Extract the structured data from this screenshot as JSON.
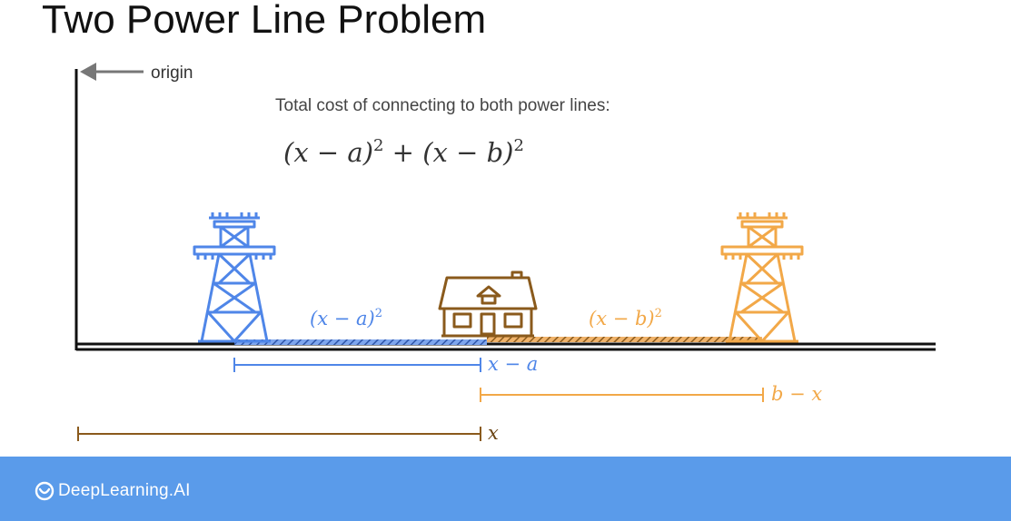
{
  "title": "Two Power Line Problem",
  "origin_label": "origin",
  "caption": "Total cost of connecting to both power lines:",
  "formula": {
    "term1_base": "(x − a)",
    "term1_exp": "2",
    "plus": " + ",
    "term2_base": "(x − b)",
    "term2_exp": "2"
  },
  "segment_labels": {
    "left_cost_base": "(x − a)",
    "left_cost_exp": "2",
    "right_cost_base": "(x − b)",
    "right_cost_exp": "2"
  },
  "measurements": {
    "x_minus_a": "x − a",
    "b_minus_x": "b − x",
    "x": "x"
  },
  "brand": "DeepLearning.AI",
  "colors": {
    "blue": "#4f86e8",
    "orange": "#f2a848",
    "brown": "#8a5a1c",
    "footer": "#5a9bea"
  },
  "icons": [
    "arrow-left-icon",
    "power-tower-icon",
    "house-icon",
    "deeplearning-logo-icon"
  ]
}
